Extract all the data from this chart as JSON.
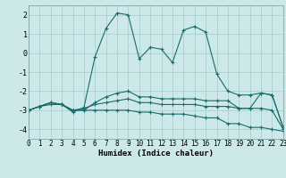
{
  "xlabel": "Humidex (Indice chaleur)",
  "ylabel": "",
  "bg_color": "#cce8e8",
  "grid_color": "#aad0d0",
  "line_color": "#1a6b6b",
  "xlim": [
    0,
    23
  ],
  "ylim": [
    -4.5,
    2.5
  ],
  "xticks": [
    0,
    1,
    2,
    3,
    4,
    5,
    6,
    7,
    8,
    9,
    10,
    11,
    12,
    13,
    14,
    15,
    16,
    17,
    18,
    19,
    20,
    21,
    22,
    23
  ],
  "yticks": [
    -4,
    -3,
    -2,
    -1,
    0,
    1,
    2
  ],
  "line1_x": [
    0,
    1,
    2,
    3,
    4,
    5,
    6,
    7,
    8,
    9,
    10,
    11,
    12,
    13,
    14,
    15,
    16,
    17,
    18,
    19,
    20,
    21,
    22,
    23
  ],
  "line1_y": [
    -3.0,
    -2.8,
    -2.6,
    -2.7,
    -3.1,
    -2.85,
    -0.2,
    1.3,
    2.1,
    2.0,
    -0.3,
    0.3,
    0.2,
    -0.5,
    1.2,
    1.4,
    1.1,
    -1.1,
    -2.0,
    -2.2,
    -2.2,
    -2.1,
    -2.2,
    -3.9
  ],
  "line2_x": [
    0,
    1,
    2,
    3,
    4,
    5,
    6,
    7,
    8,
    9,
    10,
    11,
    12,
    13,
    14,
    15,
    16,
    17,
    18,
    19,
    20,
    21,
    22,
    23
  ],
  "line2_y": [
    -3.0,
    -2.8,
    -2.6,
    -2.7,
    -3.0,
    -3.0,
    -2.6,
    -2.3,
    -2.1,
    -2.0,
    -2.3,
    -2.3,
    -2.4,
    -2.4,
    -2.4,
    -2.4,
    -2.5,
    -2.5,
    -2.5,
    -2.9,
    -2.9,
    -2.1,
    -2.2,
    -3.9
  ],
  "line3_x": [
    0,
    1,
    2,
    3,
    4,
    5,
    6,
    7,
    8,
    9,
    10,
    11,
    12,
    13,
    14,
    15,
    16,
    17,
    18,
    19,
    20,
    21,
    22,
    23
  ],
  "line3_y": [
    -3.0,
    -2.8,
    -2.6,
    -2.7,
    -3.0,
    -2.9,
    -2.7,
    -2.6,
    -2.5,
    -2.4,
    -2.6,
    -2.6,
    -2.7,
    -2.7,
    -2.7,
    -2.7,
    -2.8,
    -2.8,
    -2.8,
    -2.9,
    -2.9,
    -2.9,
    -3.0,
    -4.0
  ],
  "line4_x": [
    0,
    1,
    2,
    3,
    4,
    5,
    6,
    7,
    8,
    9,
    10,
    11,
    12,
    13,
    14,
    15,
    16,
    17,
    18,
    19,
    20,
    21,
    22,
    23
  ],
  "line4_y": [
    -3.0,
    -2.8,
    -2.7,
    -2.7,
    -3.0,
    -3.0,
    -3.0,
    -3.0,
    -3.0,
    -3.0,
    -3.1,
    -3.1,
    -3.2,
    -3.2,
    -3.2,
    -3.3,
    -3.4,
    -3.4,
    -3.7,
    -3.7,
    -3.9,
    -3.9,
    -4.0,
    -4.1
  ],
  "label_fontsize": 5.5,
  "xlabel_fontsize": 6.5
}
